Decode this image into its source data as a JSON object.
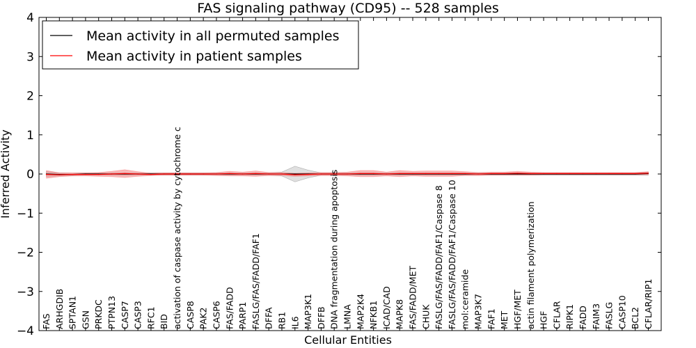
{
  "chart_data": {
    "type": "line",
    "title": "FAS signaling pathway (CD95) -- 528 samples",
    "xlabel": "Cellular Entities",
    "ylabel": "Inferred Activity",
    "ylim": [
      -4,
      4
    ],
    "yticks": [
      {
        "value": -4,
        "label": "−4"
      },
      {
        "value": -3,
        "label": "−3"
      },
      {
        "value": -2,
        "label": "−2"
      },
      {
        "value": -1,
        "label": "−1"
      },
      {
        "value": 0,
        "label": "0"
      },
      {
        "value": 1,
        "label": "1"
      },
      {
        "value": 2,
        "label": "2"
      },
      {
        "value": 3,
        "label": "3"
      },
      {
        "value": 4,
        "label": "4"
      }
    ],
    "categories": [
      "FAS",
      "ARHGDIB",
      "SPTAN1",
      "GSN",
      "PRKDC",
      "PTPN13",
      "CASP7",
      "CASP3",
      "RFC1",
      "BID",
      "activation of caspase activity by cytochrome c",
      "CASP8",
      "PAK2",
      "CASP6",
      "FAS/FADD",
      "PARP1",
      "FASLG/FAS/FADD/FAF1",
      "DFFA",
      "RB1",
      "IL6",
      "MAP3K1",
      "DFFB",
      "DNA fragmentation during apoptosis",
      "LMNA",
      "MAP2K4",
      "NFKB1",
      "ICAD/CAD",
      "MAPK8",
      "FAS/FADD/MET",
      "CHUK",
      "FASLG/FAS/FADD/FAF1/Caspase 8",
      "FASLG/FAS/FADD/FAF1/Caspase 10",
      "mol:ceramide",
      "MAP3K7",
      "FAF1",
      "MET",
      "HGF/MET",
      "actin filament polymerization",
      "HGF",
      "CFLAR",
      "RIPK1",
      "FADD",
      "FAIM3",
      "FASLG",
      "CASP10",
      "BCL2",
      "CFLAR/RIP1"
    ],
    "series": [
      {
        "name": "Mean activity in all permuted samples",
        "color": "#000000",
        "band_color": "#bbbbbb",
        "values": [
          0.0,
          -0.01,
          -0.01,
          0.0,
          0.0,
          0.0,
          0.0,
          0.0,
          0.0,
          0.0,
          0.0,
          0.0,
          0.0,
          0.0,
          0.0,
          0.0,
          0.0,
          0.0,
          0.0,
          0.0,
          0.0,
          0.0,
          0.0,
          0.0,
          0.0,
          0.0,
          0.0,
          0.0,
          0.0,
          0.0,
          0.0,
          0.0,
          0.0,
          0.0,
          0.0,
          0.0,
          0.0,
          0.0,
          0.0,
          0.0,
          0.0,
          0.0,
          0.0,
          0.0,
          0.0,
          0.0,
          0.01
        ],
        "spread": [
          0.06,
          0.04,
          0.03,
          0.03,
          0.03,
          0.03,
          0.03,
          0.03,
          0.03,
          0.03,
          0.03,
          0.03,
          0.03,
          0.03,
          0.03,
          0.03,
          0.03,
          0.03,
          0.05,
          0.2,
          0.1,
          0.03,
          0.03,
          0.03,
          0.03,
          0.03,
          0.03,
          0.03,
          0.03,
          0.03,
          0.03,
          0.03,
          0.03,
          0.03,
          0.03,
          0.03,
          0.03,
          0.03,
          0.03,
          0.03,
          0.03,
          0.03,
          0.03,
          0.03,
          0.03,
          0.03,
          0.04
        ]
      },
      {
        "name": "Mean activity in patient samples",
        "color": "#ff0000",
        "band_color": "#f08080",
        "values": [
          -0.01,
          -0.02,
          -0.01,
          -0.01,
          -0.01,
          0.0,
          0.01,
          0.0,
          -0.01,
          0.0,
          0.0,
          0.0,
          0.0,
          0.0,
          0.01,
          0.0,
          0.01,
          0.0,
          0.0,
          -0.02,
          -0.01,
          0.0,
          0.0,
          0.0,
          0.01,
          0.01,
          0.0,
          0.01,
          0.01,
          0.01,
          0.01,
          0.01,
          0.01,
          0.0,
          0.01,
          0.01,
          0.02,
          0.01,
          0.01,
          0.01,
          0.01,
          0.01,
          0.01,
          0.01,
          0.01,
          0.01,
          0.02
        ],
        "spread": [
          0.1,
          0.05,
          0.04,
          0.04,
          0.05,
          0.07,
          0.1,
          0.06,
          0.03,
          0.03,
          0.03,
          0.03,
          0.03,
          0.04,
          0.06,
          0.05,
          0.07,
          0.04,
          0.04,
          0.04,
          0.04,
          0.04,
          0.04,
          0.05,
          0.08,
          0.08,
          0.05,
          0.08,
          0.06,
          0.07,
          0.07,
          0.07,
          0.05,
          0.04,
          0.04,
          0.04,
          0.05,
          0.04,
          0.03,
          0.03,
          0.03,
          0.03,
          0.03,
          0.03,
          0.03,
          0.03,
          0.04
        ]
      }
    ],
    "legend_position": "top-left"
  }
}
